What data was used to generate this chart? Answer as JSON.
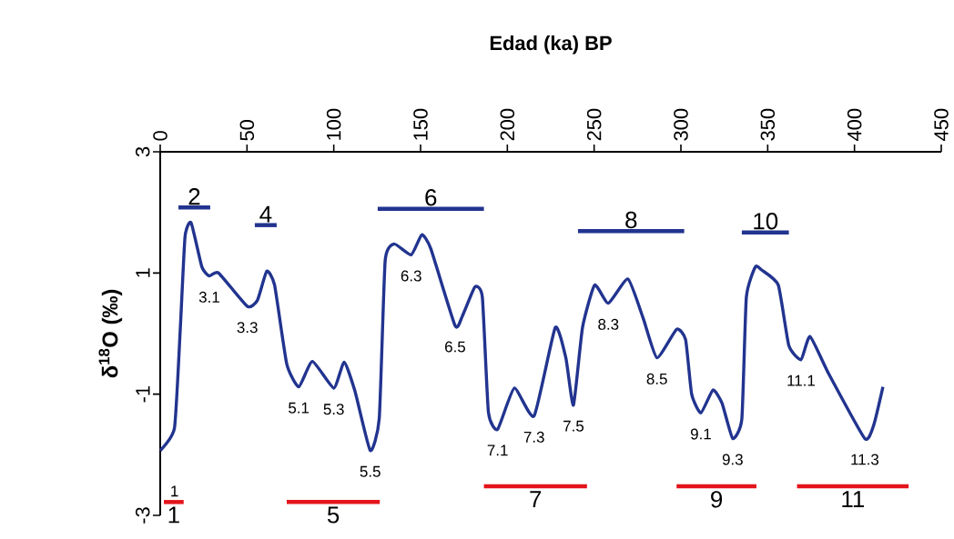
{
  "chart_data": {
    "type": "line",
    "title": "Edad (ka) BP",
    "ylabel": "**δ$^{18}$O  (‰)**",
    "xlim": [
      0,
      450
    ],
    "xticks": [
      0,
      50,
      100,
      150,
      200,
      250,
      300,
      350,
      400,
      450
    ],
    "ylim": [
      -3,
      3
    ],
    "yticks": [
      3,
      1,
      -1,
      -3
    ],
    "series": [
      {
        "color": "#22348f",
        "x": [
          0,
          8.2,
          11.6,
          14.3,
          17.8,
          24,
          28.3,
          33.6,
          50.2,
          56,
          61.4,
          65.9,
          72.9,
          79.8,
          87.7,
          100,
          106,
          112.2,
          121,
          126.2,
          129.6,
          134.8,
          144.6,
          150.7,
          155.9,
          169.9,
          174.1,
          181.3,
          185.6,
          189.1,
          194.4,
          204,
          215.4,
          227.6,
          233.7,
          238.1,
          243.3,
          250.3,
          258.2,
          269.5,
          278.3,
          286.2,
          297.5,
          302.7,
          306.2,
          311.5,
          318.5,
          323.7,
          329.8,
          335.1,
          337.7,
          342.9,
          346.5,
          356.1,
          362.2,
          369.2,
          374.4,
          384.9,
          405.9,
          411.1,
          416.4
        ],
        "values": [
          -1.93,
          -1.56,
          0.1,
          1.6,
          1.83,
          1.1,
          0.95,
          1.0,
          0.45,
          0.55,
          1.03,
          0.8,
          -0.5,
          -0.88,
          -0.46,
          -0.9,
          -0.47,
          -0.95,
          -1.93,
          -1.4,
          1.2,
          1.48,
          1.3,
          1.63,
          1.4,
          0.13,
          0.29,
          0.77,
          0.6,
          -1.3,
          -1.58,
          -0.9,
          -1.36,
          0.1,
          -0.4,
          -1.18,
          0.1,
          0.8,
          0.5,
          0.9,
          0.25,
          -0.4,
          0.07,
          -0.1,
          -1.0,
          -1.31,
          -0.93,
          -1.15,
          -1.73,
          -1.41,
          0.6,
          1.1,
          1.05,
          0.8,
          -0.2,
          -0.43,
          -0.05,
          -0.65,
          -1.73,
          -1.51,
          -0.88
        ]
      },
      {
        "name": "2",
        "color": "#22348f",
        "x": [
          10.5,
          28.8
        ],
        "values": [
          2.08,
          2.08
        ]
      },
      {
        "name": "4",
        "color": "#22348f",
        "x": [
          54.5,
          67.1
        ],
        "values": [
          1.79,
          1.79
        ]
      },
      {
        "name": "6",
        "color": "#22348f",
        "x": [
          125.3,
          186.5
        ],
        "values": [
          2.06,
          2.06
        ]
      },
      {
        "name": "8",
        "color": "#22348f",
        "x": [
          240.7,
          301.9
        ],
        "values": [
          1.69,
          1.69
        ]
      },
      {
        "name": "10",
        "color": "#22348f",
        "x": [
          335.1,
          362.2
        ],
        "values": [
          1.67,
          1.67
        ]
      },
      {
        "name": "1",
        "color": "#e3141b",
        "x": [
          2.1,
          13.5
        ],
        "values": [
          -2.78,
          -2.78
        ]
      },
      {
        "name": "5",
        "color": "#e3141b",
        "x": [
          72.9,
          126.5
        ],
        "values": [
          -2.78,
          -2.78
        ]
      },
      {
        "name": "7",
        "color": "#e3141b",
        "x": [
          186.5,
          245.9
        ],
        "values": [
          -2.52,
          -2.52
        ]
      },
      {
        "name": "9",
        "color": "#e3141b",
        "x": [
          297.5,
          343.5
        ],
        "values": [
          -2.52,
          -2.52
        ]
      },
      {
        "name": "11",
        "color": "#e3141b",
        "x": [
          366.9,
          431.2
        ],
        "values": [
          -2.52,
          -2.52
        ]
      }
    ],
    "annotations": [
      {
        "text": "1",
        "x": 8.2,
        "y": -2.78
      },
      {
        "text": "3.1",
        "x": 28.3,
        "y": 0.95
      },
      {
        "text": "3.3",
        "x": 50.2,
        "y": 0.45
      },
      {
        "text": "5.1",
        "x": 79.8,
        "y": -0.88
      },
      {
        "text": "5.3",
        "x": 100,
        "y": -0.9
      },
      {
        "text": "5.5",
        "x": 121,
        "y": -1.93
      },
      {
        "text": "6.3",
        "x": 144.6,
        "y": 1.3
      },
      {
        "text": "6.5",
        "x": 169.9,
        "y": 0.13
      },
      {
        "text": "7.1",
        "x": 194.4,
        "y": -1.58
      },
      {
        "text": "7.3",
        "x": 215.4,
        "y": -1.36
      },
      {
        "text": "7.5",
        "x": 238.1,
        "y": -1.18
      },
      {
        "text": "8.3",
        "x": 258.2,
        "y": 0.5
      },
      {
        "text": "8.5",
        "x": 286.2,
        "y": -0.4
      },
      {
        "text": "9.1",
        "x": 311.5,
        "y": -1.31
      },
      {
        "text": "9.3",
        "x": 329.8,
        "y": -1.73
      },
      {
        "text": "11.1",
        "x": 369.2,
        "y": -0.43
      },
      {
        "text": "11.3",
        "x": 405.9,
        "y": -1.73
      }
    ]
  }
}
